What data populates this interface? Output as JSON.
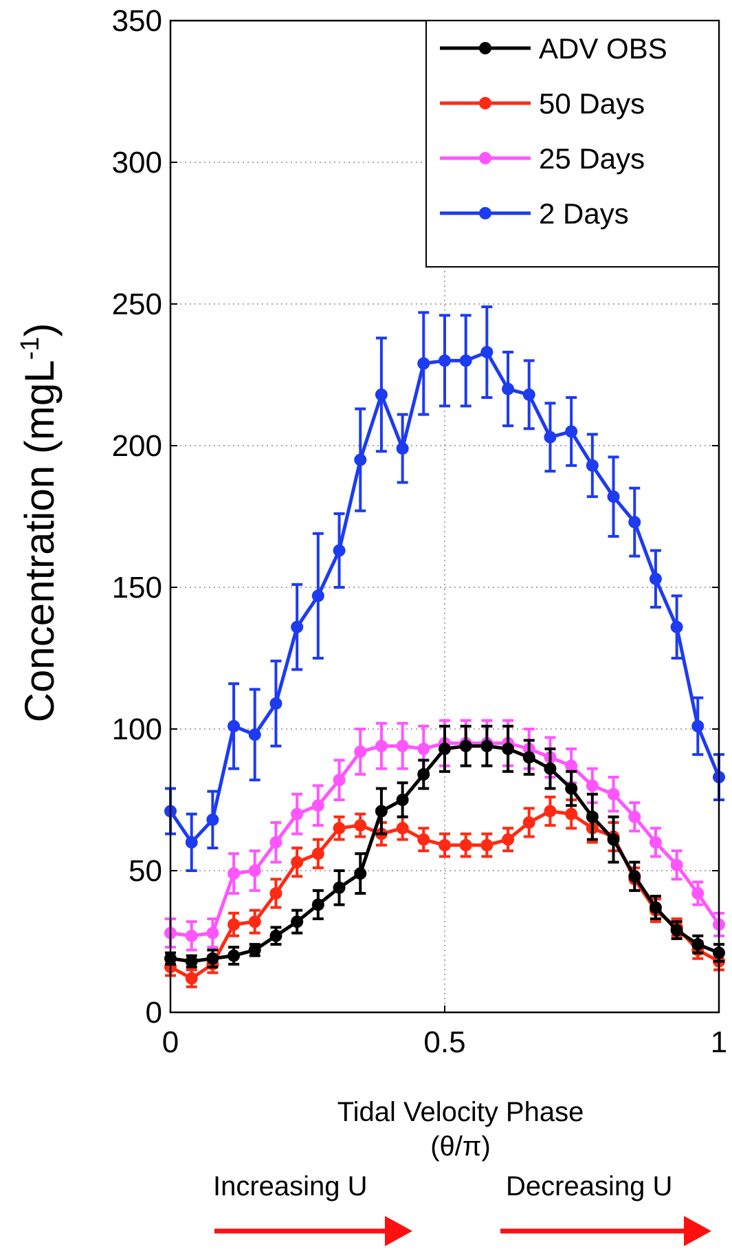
{
  "chart_data": {
    "type": "line",
    "title": "",
    "xlabel": "Tidal Velocity Phase",
    "xlabel_sub": "(θ/π)",
    "ylabel": "Concentration (mgL",
    "ylabel_sup": "-1",
    "ylabel_close": ")",
    "xlim": [
      0,
      1
    ],
    "ylim": [
      0,
      350
    ],
    "xticks": [
      0,
      0.5,
      1
    ],
    "xtick_labels": [
      "0",
      "0.5",
      "1"
    ],
    "yticks": [
      0,
      50,
      100,
      150,
      200,
      250,
      300,
      350
    ],
    "ytick_labels": [
      "0",
      "50",
      "100",
      "150",
      "200",
      "250",
      "300",
      "350"
    ],
    "grid": true,
    "legend_position": "top-right",
    "x": [
      0,
      0.0385,
      0.0769,
      0.1154,
      0.1538,
      0.1923,
      0.2308,
      0.2692,
      0.3077,
      0.3462,
      0.3846,
      0.4231,
      0.4615,
      0.5,
      0.5385,
      0.5769,
      0.6154,
      0.6538,
      0.6923,
      0.7308,
      0.7692,
      0.8077,
      0.8462,
      0.8846,
      0.9231,
      0.9615,
      1
    ],
    "series": [
      {
        "name": "ADV OBS",
        "color": "#000000",
        "values": [
          19,
          18,
          19,
          20,
          22,
          27,
          32,
          38,
          44,
          49,
          71,
          75,
          84,
          93,
          94,
          94,
          93,
          90,
          86,
          79,
          69,
          61,
          48,
          37,
          29,
          24,
          21
        ],
        "errors": [
          2,
          2,
          3,
          3,
          2,
          3,
          4,
          5,
          6,
          7,
          8,
          6,
          5,
          8,
          7,
          7,
          8,
          6,
          7,
          6,
          8,
          8,
          5,
          4,
          3,
          3,
          3
        ]
      },
      {
        "name": "50 Days",
        "color": "#ff2a14",
        "values": [
          16,
          12,
          17,
          31,
          32,
          42,
          53,
          56,
          65,
          66,
          63,
          65,
          61,
          59,
          59,
          59,
          61,
          67,
          71,
          70,
          65,
          62,
          47,
          36,
          30,
          22,
          18
        ],
        "errors": [
          3,
          3,
          3,
          4,
          4,
          5,
          5,
          5,
          4,
          4,
          4,
          4,
          4,
          4,
          4,
          4,
          4,
          5,
          5,
          5,
          5,
          5,
          4,
          4,
          3,
          3,
          3
        ]
      },
      {
        "name": "25 Days",
        "color": "#ff55ff",
        "values": [
          28,
          27,
          28,
          49,
          50,
          60,
          70,
          73,
          82,
          92,
          94,
          94,
          93,
          95,
          95,
          95,
          95,
          93,
          90,
          87,
          80,
          77,
          69,
          60,
          52,
          42,
          31
        ],
        "errors": [
          5,
          5,
          5,
          7,
          7,
          7,
          7,
          7,
          7,
          8,
          8,
          8,
          8,
          8,
          8,
          8,
          8,
          7,
          7,
          6,
          6,
          6,
          5,
          5,
          5,
          4,
          4
        ]
      },
      {
        "name": "2 Days",
        "color": "#1d3bf0",
        "values": [
          71,
          60,
          68,
          101,
          98,
          109,
          136,
          147,
          163,
          195,
          218,
          199,
          229,
          230,
          230,
          233,
          220,
          218,
          203,
          205,
          193,
          182,
          173,
          153,
          136,
          101,
          83
        ],
        "errors": [
          8,
          10,
          10,
          15,
          16,
          15,
          15,
          22,
          13,
          18,
          20,
          12,
          18,
          16,
          16,
          16,
          13,
          12,
          12,
          12,
          11,
          14,
          12,
          10,
          11,
          10,
          8
        ]
      }
    ]
  },
  "annotations": {
    "increasing_label": "Increasing  U",
    "decreasing_label": "Decreasing U",
    "arrow_color": "#ff1010"
  }
}
